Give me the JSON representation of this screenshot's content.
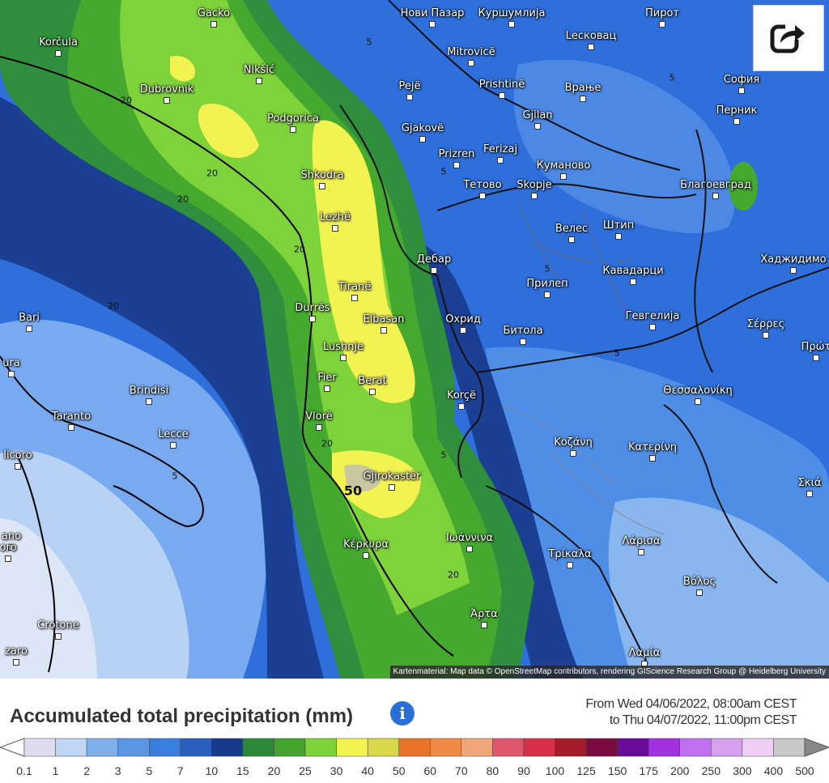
{
  "map": {
    "share_icon": "share-icon",
    "attribution": "Kartenmaterial: Map data © OpenStreetMap contributors, rendering GIScience Research Group @ Heidelberg University",
    "cities": [
      {
        "name": "Gacko"
      },
      {
        "name": "Нови Пазар"
      },
      {
        "name": "Куршумлија"
      },
      {
        "name": "Пирот"
      },
      {
        "name": "Korčula"
      },
      {
        "name": "Lесковац"
      },
      {
        "name": "Mitrovicë"
      },
      {
        "name": "Nikšić"
      },
      {
        "name": "Dubrovnik"
      },
      {
        "name": "София"
      },
      {
        "name": "Pejë"
      },
      {
        "name": "Prishtinë"
      },
      {
        "name": "Врање"
      },
      {
        "name": "Перник"
      },
      {
        "name": "Podgorica"
      },
      {
        "name": "Gjilan"
      },
      {
        "name": "Gjakovë"
      },
      {
        "name": "Prizren"
      },
      {
        "name": "Ferizaj"
      },
      {
        "name": "Куманово"
      },
      {
        "name": "Shkodra"
      },
      {
        "name": "Тетово"
      },
      {
        "name": "Skopje"
      },
      {
        "name": "Благоевград"
      },
      {
        "name": "Lezhë"
      },
      {
        "name": "Велес"
      },
      {
        "name": "Штип"
      },
      {
        "name": "Дебар"
      },
      {
        "name": "Хаджидимо"
      },
      {
        "name": "Tiranë"
      },
      {
        "name": "Прилеп"
      },
      {
        "name": "Кавадарци"
      },
      {
        "name": "Durrës"
      },
      {
        "name": "Bari"
      },
      {
        "name": "Elbasan"
      },
      {
        "name": "Охрид"
      },
      {
        "name": "Битола"
      },
      {
        "name": "Гевгелија"
      },
      {
        "name": "Σέρρες"
      },
      {
        "name": "Lushnje"
      },
      {
        "name": "ura"
      },
      {
        "name": "Πρώτ"
      },
      {
        "name": "Fier"
      },
      {
        "name": "Berat"
      },
      {
        "name": "Brindisi"
      },
      {
        "name": "Korçë"
      },
      {
        "name": "Θεσσαλονίκη"
      },
      {
        "name": "Taranto"
      },
      {
        "name": "Vlorë"
      },
      {
        "name": "Lecce"
      },
      {
        "name": "Κοζάνη"
      },
      {
        "name": "Κατερίνη"
      },
      {
        "name": "licoro"
      },
      {
        "name": "Gjirokastër"
      },
      {
        "name": "Σκιά"
      },
      {
        "name": "ano"
      },
      {
        "name": "oro"
      },
      {
        "name": "Κέρκυρα"
      },
      {
        "name": "Ιωάννινα"
      },
      {
        "name": "Λάρισα"
      },
      {
        "name": "Τρίκαλα"
      },
      {
        "name": "Βόλος"
      },
      {
        "name": "Crotone"
      },
      {
        "name": "Άρτα"
      },
      {
        "name": "Λαμία"
      },
      {
        "name": "zaro"
      }
    ],
    "contour_labels": [
      "5",
      "20",
      "20",
      "20",
      "20",
      "5",
      "5",
      "20",
      "5",
      "5",
      "5",
      "20",
      "50",
      "5",
      "20"
    ]
  },
  "legend": {
    "title": "Accumulated total precipitation (mm)",
    "info_icon": "info-icon",
    "info_glyph": "i",
    "period_from": "From Wed 04/06/2022, 08:00am CEST",
    "period_to": "to Thu 04/07/2022, 11:00pm CEST",
    "colors": [
      "#e0dcf0",
      "#c0d6f4",
      "#7fb0ec",
      "#5a96e4",
      "#3a7ee0",
      "#2a5fc0",
      "#173a8a",
      "#2a8a3a",
      "#44a52e",
      "#7ed23a",
      "#f2f251",
      "#d8d84a",
      "#e8742a",
      "#f08a46",
      "#f0a678",
      "#e0566c",
      "#d8304a",
      "#a31a2a",
      "#7a0a40",
      "#6a0a9a",
      "#a030e0",
      "#c070f0",
      "#d8a0f0",
      "#efd0f4",
      "#c8c8c8"
    ],
    "ticks": [
      "0.1",
      "1",
      "2",
      "3",
      "5",
      "7",
      "10",
      "15",
      "20",
      "25",
      "30",
      "40",
      "50",
      "60",
      "70",
      "80",
      "90",
      "100",
      "125",
      "150",
      "175",
      "200",
      "250",
      "300",
      "400",
      "500"
    ]
  }
}
